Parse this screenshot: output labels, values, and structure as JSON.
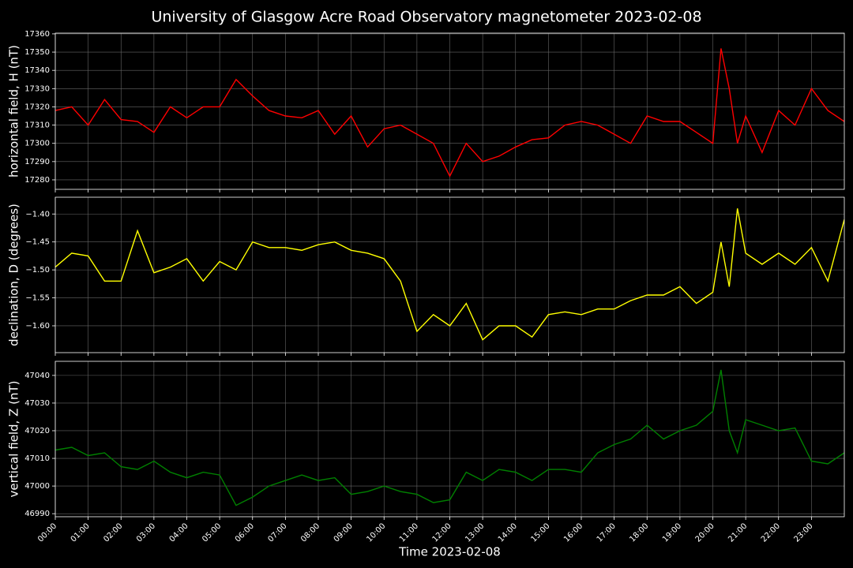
{
  "title": "University of Glasgow Acre Road Observatory magnetometer 2023-02-08",
  "chart_data": [
    {
      "type": "line",
      "ylabel": "horizontal field, H (nT)",
      "color": "#ff0000",
      "grid": true,
      "x": [
        0,
        0.5,
        1,
        1.5,
        2,
        2.5,
        3,
        3.5,
        4,
        4.5,
        5,
        5.5,
        6,
        6.5,
        7,
        7.5,
        8,
        8.5,
        9,
        9.5,
        10,
        10.5,
        11,
        11.5,
        12,
        12.5,
        13,
        13.5,
        14,
        14.5,
        15,
        15.5,
        16,
        16.5,
        17,
        17.5,
        18,
        18.5,
        19,
        19.5,
        20,
        20.25,
        20.5,
        20.75,
        21,
        21.5,
        22,
        22.5,
        23,
        23.5,
        24
      ],
      "values": [
        17318,
        17320,
        17310,
        17324,
        17313,
        17312,
        17306,
        17320,
        17314,
        17320,
        17320,
        17335,
        17326,
        17318,
        17315,
        17314,
        17318,
        17305,
        17315,
        17298,
        17308,
        17310,
        17305,
        17300,
        17282,
        17300,
        17290,
        17293,
        17298,
        17302,
        17303,
        17310,
        17312,
        17310,
        17305,
        17300,
        17315,
        17312,
        17312,
        17306,
        17300,
        17352,
        17330,
        17300,
        17315,
        17295,
        17318,
        17310,
        17330,
        17318,
        17312
      ],
      "xlim": [
        0,
        24
      ],
      "xticks": [
        0,
        1,
        2,
        3,
        4,
        5,
        6,
        7,
        8,
        9,
        10,
        11,
        12,
        13,
        14,
        15,
        16,
        17,
        18,
        19,
        20,
        21,
        22,
        23
      ],
      "ylim": [
        17274.8,
        17360.4
      ],
      "yticks": [
        17280,
        17290,
        17300,
        17310,
        17320,
        17330,
        17340,
        17350,
        17360
      ]
    },
    {
      "type": "line",
      "ylabel": "declination, D (degrees)",
      "color": "#ffff00",
      "grid": true,
      "x": [
        0,
        0.5,
        1,
        1.5,
        2,
        2.5,
        3,
        3.5,
        4,
        4.5,
        5,
        5.5,
        6,
        6.5,
        7,
        7.5,
        8,
        8.5,
        9,
        9.5,
        10,
        10.5,
        11,
        11.5,
        12,
        12.5,
        13,
        13.5,
        14,
        14.5,
        15,
        15.5,
        16,
        16.5,
        17,
        17.5,
        18,
        18.5,
        19,
        19.5,
        20,
        20.25,
        20.5,
        20.75,
        21,
        21.5,
        22,
        22.5,
        23,
        23.5,
        24
      ],
      "values": [
        -1.495,
        -1.47,
        -1.475,
        -1.52,
        -1.52,
        -1.43,
        -1.505,
        -1.495,
        -1.48,
        -1.52,
        -1.485,
        -1.5,
        -1.45,
        -1.46,
        -1.46,
        -1.465,
        -1.455,
        -1.45,
        -1.465,
        -1.47,
        -1.48,
        -1.52,
        -1.61,
        -1.58,
        -1.6,
        -1.56,
        -1.625,
        -1.6,
        -1.6,
        -1.62,
        -1.58,
        -1.575,
        -1.58,
        -1.57,
        -1.57,
        -1.555,
        -1.545,
        -1.545,
        -1.53,
        -1.56,
        -1.54,
        -1.45,
        -1.53,
        -1.39,
        -1.47,
        -1.49,
        -1.47,
        -1.49,
        -1.46,
        -1.52,
        -1.41
      ],
      "xlim": [
        0,
        24
      ],
      "xticks": [
        0,
        1,
        2,
        3,
        4,
        5,
        6,
        7,
        8,
        9,
        10,
        11,
        12,
        13,
        14,
        15,
        16,
        17,
        18,
        19,
        20,
        21,
        22,
        23
      ],
      "ylim": [
        -1.648,
        -1.37
      ],
      "yticks": [
        {
          "value": -1.6,
          "label": "−1.60"
        },
        {
          "value": -1.55,
          "label": "−1.55"
        },
        {
          "value": -1.5,
          "label": "−1.50"
        },
        {
          "value": -1.45,
          "label": "−1.45"
        },
        {
          "value": -1.4,
          "label": "−1.40"
        }
      ]
    },
    {
      "type": "line",
      "ylabel": "vertical field, Z (nT)",
      "xlabel": "Time 2023-02-08",
      "color": "#008000",
      "grid": true,
      "x": [
        0,
        0.5,
        1,
        1.5,
        2,
        2.5,
        3,
        3.5,
        4,
        4.5,
        5,
        5.5,
        6,
        6.5,
        7,
        7.5,
        8,
        8.5,
        9,
        9.5,
        10,
        10.5,
        11,
        11.5,
        12,
        12.5,
        13,
        13.5,
        14,
        14.5,
        15,
        15.5,
        16,
        16.5,
        17,
        17.5,
        18,
        18.5,
        19,
        19.5,
        20,
        20.25,
        20.5,
        20.75,
        21,
        21.5,
        22,
        22.5,
        23,
        23.5,
        24
      ],
      "values": [
        47013,
        47014,
        47011,
        47012,
        47007,
        47006,
        47009,
        47005,
        47003,
        47005,
        47004,
        46993,
        46996,
        47000,
        47002,
        47004,
        47002,
        47003,
        46997,
        46998,
        47000,
        46998,
        46997,
        46994,
        46995,
        47005,
        47002,
        47006,
        47005,
        47002,
        47006,
        47006,
        47005,
        47012,
        47015,
        47017,
        47022,
        47017,
        47020,
        47022,
        47027,
        47042,
        47020,
        47012,
        47024,
        47022,
        47020,
        47021,
        47009,
        47008,
        47012
      ],
      "xlim": [
        0,
        24
      ],
      "xticks": [
        {
          "value": 0,
          "label": "00:00"
        },
        {
          "value": 1,
          "label": "01:00"
        },
        {
          "value": 2,
          "label": "02:00"
        },
        {
          "value": 3,
          "label": "03:00"
        },
        {
          "value": 4,
          "label": "04:00"
        },
        {
          "value": 5,
          "label": "05:00"
        },
        {
          "value": 6,
          "label": "06:00"
        },
        {
          "value": 7,
          "label": "07:00"
        },
        {
          "value": 8,
          "label": "08:00"
        },
        {
          "value": 9,
          "label": "09:00"
        },
        {
          "value": 10,
          "label": "10:00"
        },
        {
          "value": 11,
          "label": "11:00"
        },
        {
          "value": 12,
          "label": "12:00"
        },
        {
          "value": 13,
          "label": "13:00"
        },
        {
          "value": 14,
          "label": "14:00"
        },
        {
          "value": 15,
          "label": "15:00"
        },
        {
          "value": 16,
          "label": "16:00"
        },
        {
          "value": 17,
          "label": "17:00"
        },
        {
          "value": 18,
          "label": "18:00"
        },
        {
          "value": 19,
          "label": "19:00"
        },
        {
          "value": 20,
          "label": "20:00"
        },
        {
          "value": 21,
          "label": "21:00"
        },
        {
          "value": 22,
          "label": "22:00"
        },
        {
          "value": 23,
          "label": "23:00"
        }
      ],
      "ylim": [
        46988.9,
        47045.1
      ],
      "yticks": [
        46990,
        47000,
        47010,
        47020,
        47030,
        47040
      ]
    }
  ]
}
